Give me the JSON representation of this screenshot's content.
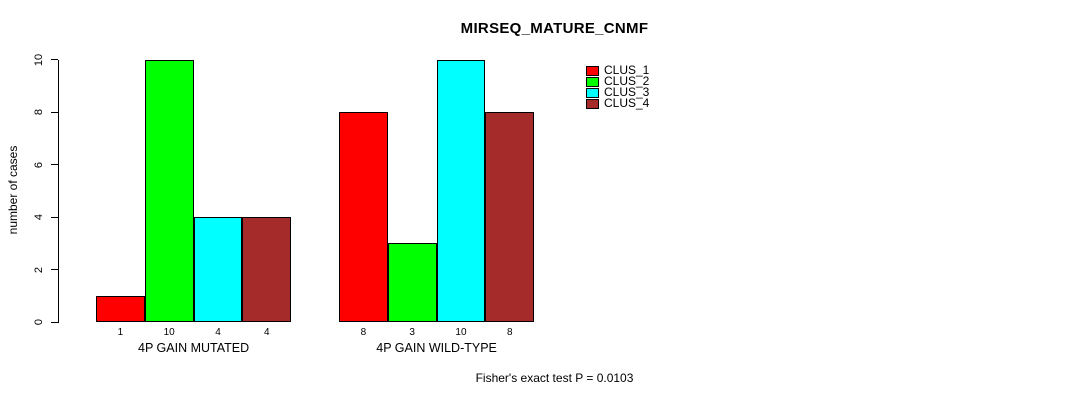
{
  "chart_data": {
    "type": "bar",
    "title": "MIRSEQ_MATURE_CNMF",
    "ylabel": "number of cases",
    "xlabel": "",
    "ylim": [
      0,
      10
    ],
    "yticks": [
      0,
      2,
      4,
      6,
      8,
      10
    ],
    "grid": false,
    "legend_position": "top-right-inside",
    "categories": [
      "4P GAIN MUTATED",
      "4P GAIN WILD-TYPE"
    ],
    "series": [
      {
        "name": "CLUS_1",
        "color": "#ff0000",
        "values": [
          1,
          8
        ]
      },
      {
        "name": "CLUS_2",
        "color": "#00ff00",
        "values": [
          10,
          3
        ]
      },
      {
        "name": "CLUS_3",
        "color": "#00ffff",
        "values": [
          4,
          10
        ]
      },
      {
        "name": "CLUS_4",
        "color": "#a52a2a",
        "values": [
          4,
          8
        ]
      }
    ],
    "bar_count_labels": [
      [
        "1",
        "10",
        "4",
        "4"
      ],
      [
        "8",
        "3",
        "10",
        "8"
      ]
    ],
    "annotation": "Fisher's exact test P = 0.0103"
  }
}
